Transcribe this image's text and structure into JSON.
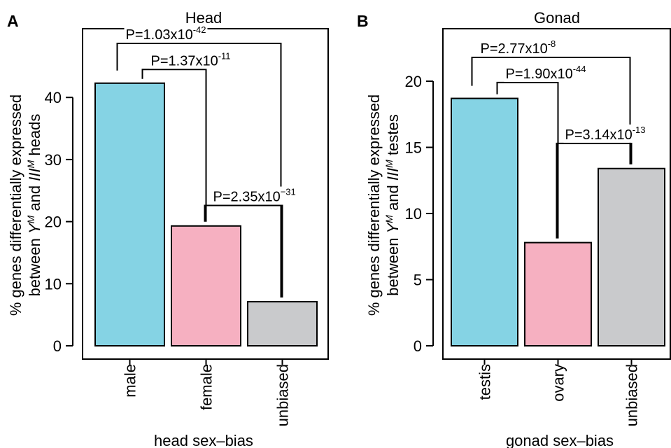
{
  "chart_data": [
    {
      "type": "bar",
      "panel": "A",
      "title": "Head",
      "xlabel": "head sex–bias",
      "ylabel": {
        "line1": "% genes differentially expressed",
        "line2_pre": "between ",
        "sym1": "Y",
        "sym1_sup": "M",
        "line2_mid": " and ",
        "sym2": "III",
        "sym2_sup": "M",
        "line2_post": " heads"
      },
      "ylim": [
        0,
        50
      ],
      "yticks": [
        0,
        10,
        20,
        30,
        40
      ],
      "categories": [
        "male",
        "female",
        "unbiased"
      ],
      "values": [
        42.3,
        19.3,
        7.1
      ],
      "colors": [
        "#85d3e4",
        "#f6b0c1",
        "#c9cacc"
      ],
      "comparisons": [
        {
          "from": 0,
          "to": 2,
          "base": "P=1.03x10",
          "exp": "-42",
          "level": 48.7
        },
        {
          "from": 0,
          "to": 1,
          "base": "P=1.37x10",
          "exp": "-11",
          "level": 44.5
        },
        {
          "from": 1,
          "to": 2,
          "base": "P=2.35x10",
          "exp": "−31",
          "level": 22.6
        }
      ]
    },
    {
      "type": "bar",
      "panel": "B",
      "title": "Gonad",
      "xlabel": "gonad sex–bias",
      "ylabel": {
        "line1": "% genes differentially expressed",
        "line2_pre": "between ",
        "sym1": "Y",
        "sym1_sup": "M",
        "line2_mid": " and ",
        "sym2": "III",
        "sym2_sup": "M",
        "line2_post": " testes"
      },
      "ylim": [
        0,
        24
      ],
      "yticks": [
        0,
        5,
        10,
        15,
        20
      ],
      "categories": [
        "testis",
        "ovary",
        "unbiased"
      ],
      "values": [
        18.7,
        7.8,
        13.4
      ],
      "colors": [
        "#85d3e4",
        "#f6b0c1",
        "#c9cacc"
      ],
      "comparisons": [
        {
          "from": 0,
          "to": 2,
          "base": "P=2.77x10",
          "exp": "-8",
          "level": 21.8
        },
        {
          "from": 0,
          "to": 1,
          "base": "P=1.90x10",
          "exp": "-44",
          "level": 19.9
        },
        {
          "from": 1,
          "to": 2,
          "base": "P=3.14x10",
          "exp": "-13",
          "level": 15.3
        }
      ]
    }
  ]
}
